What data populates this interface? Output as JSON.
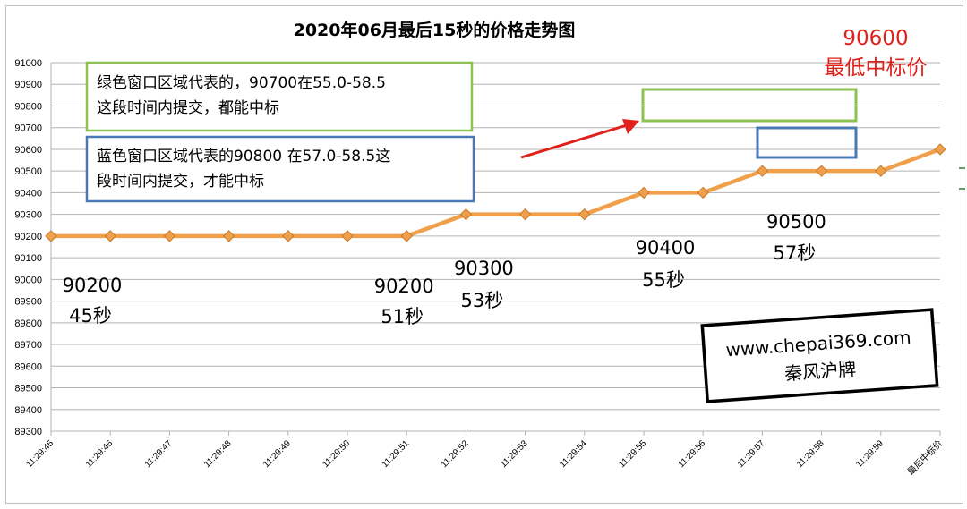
{
  "chart_data": {
    "type": "line",
    "title": "2020年06月最后15秒的价格走势图",
    "categories": [
      "11:29:45",
      "11:29:46",
      "11:29:47",
      "11:29:48",
      "11:29:49",
      "11:29:50",
      "11:29:51",
      "11:29:52",
      "11:29:53",
      "11:29:54",
      "11:29:55",
      "11:29:56",
      "11:29:57",
      "11:29:58",
      "11:29:59",
      "最后中标价"
    ],
    "values": [
      90200,
      90200,
      90200,
      90200,
      90200,
      90200,
      90200,
      90300,
      90300,
      90300,
      90400,
      90400,
      90500,
      90500,
      90500,
      90600
    ],
    "ylim": [
      89300,
      91000
    ],
    "ytick_step": 100,
    "grid": true,
    "line_color": "#f0a04b",
    "marker_color": "#f0a04b",
    "annotations": [
      {
        "text": "90200",
        "sub": "45秒",
        "index": 0
      },
      {
        "text": "90200",
        "sub": "51秒",
        "index": 6
      },
      {
        "text": "90300",
        "sub": "53秒",
        "index": 7
      },
      {
        "text": "90400",
        "sub": "55秒",
        "index": 10
      },
      {
        "text": "90500",
        "sub": "57秒",
        "index": 12
      }
    ],
    "red_label": {
      "value": "90600",
      "text": "最低中标价",
      "color": "#e0201b"
    },
    "green_box": {
      "line1": "绿色窗口区域代表的，90700在55.0-58.5",
      "line2": "这段时间内提交，都能中标",
      "color": "#8dc252"
    },
    "blue_box": {
      "line1": "蓝色窗口区域代表的90800 在57.0-58.5这",
      "line2": "段时间内提交，才能中标",
      "color": "#4a7ab5"
    },
    "watermark": {
      "line1": "www.chepai369.com",
      "line2": "秦风沪牌"
    }
  }
}
